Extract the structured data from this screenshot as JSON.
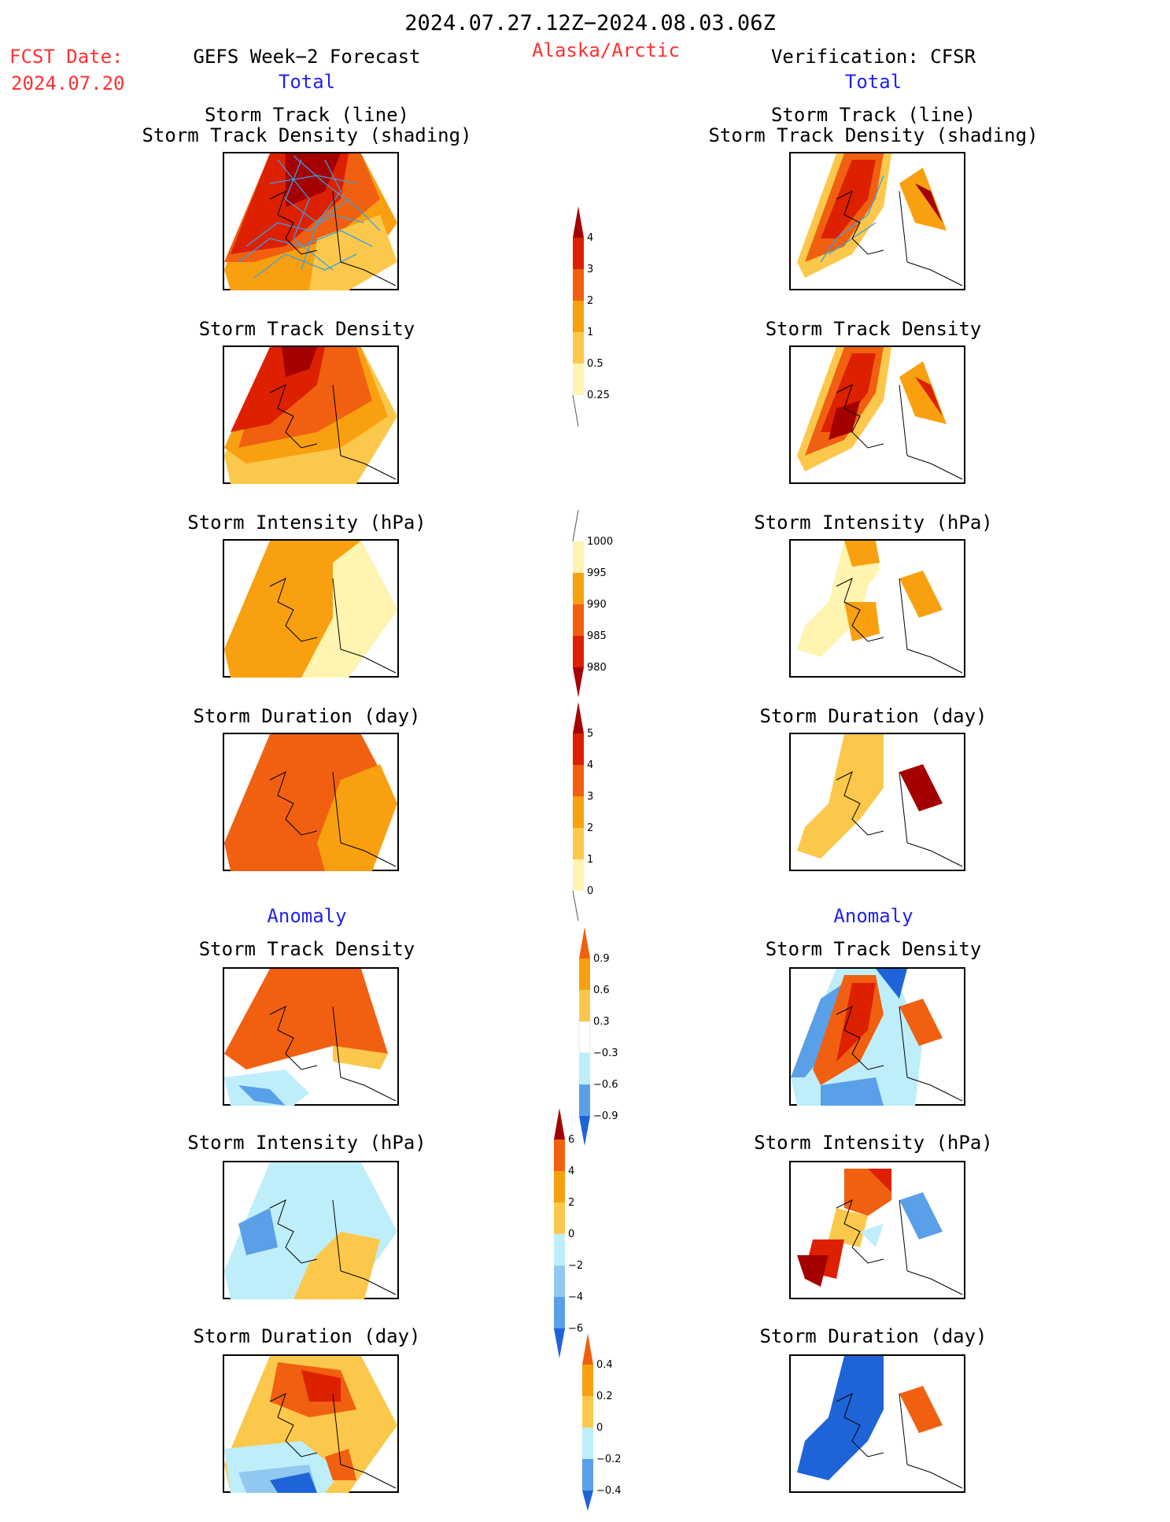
{
  "header": {
    "date_range": "2024.07.27.12Z−2024.08.03.06Z",
    "fcst_label": "FCST Date:",
    "fcst_date": "2024.07.20",
    "left_title": "GEFS Week−2 Forecast",
    "region": "Alaska/Arctic",
    "right_title": "Verification: CFSR",
    "total_label": "Total",
    "anomaly_label": "Anomaly"
  },
  "panels": {
    "track_line_title_1": "Storm Track (line)",
    "track_line_title_2": "Storm Track Density (shading)",
    "density_title": "Storm Track Density",
    "intensity_title": "Storm Intensity (hPa)",
    "duration_title": "Storm Duration (day)"
  },
  "colorbars": {
    "density_total": [
      "4",
      "3",
      "2",
      "1",
      "0.5",
      "0.25"
    ],
    "intensity_total": [
      "1000",
      "995",
      "990",
      "985",
      "980"
    ],
    "duration_total": [
      "5",
      "4",
      "3",
      "2",
      "1",
      "0"
    ],
    "density_anom": [
      "0.9",
      "0.6",
      "0.3",
      "−0.3",
      "−0.6",
      "−0.9"
    ],
    "intensity_anom": [
      "6",
      "4",
      "2",
      "0",
      "−2",
      "−4",
      "−6"
    ],
    "duration_anom": [
      "0.4",
      "0.2",
      "0",
      "−0.2",
      "−0.4"
    ]
  },
  "colors": {
    "darkred": "#a50000",
    "red": "#dd2000",
    "orangered": "#f06010",
    "orange": "#f8a010",
    "lightorange": "#fcc84c",
    "paleyellow": "#fff4b0",
    "lightcyan": "#bfeefb",
    "lightblue": "#90c8f0",
    "midblue": "#5aa0e8",
    "blue": "#1e64d8",
    "track": "#3aa0e8"
  }
}
